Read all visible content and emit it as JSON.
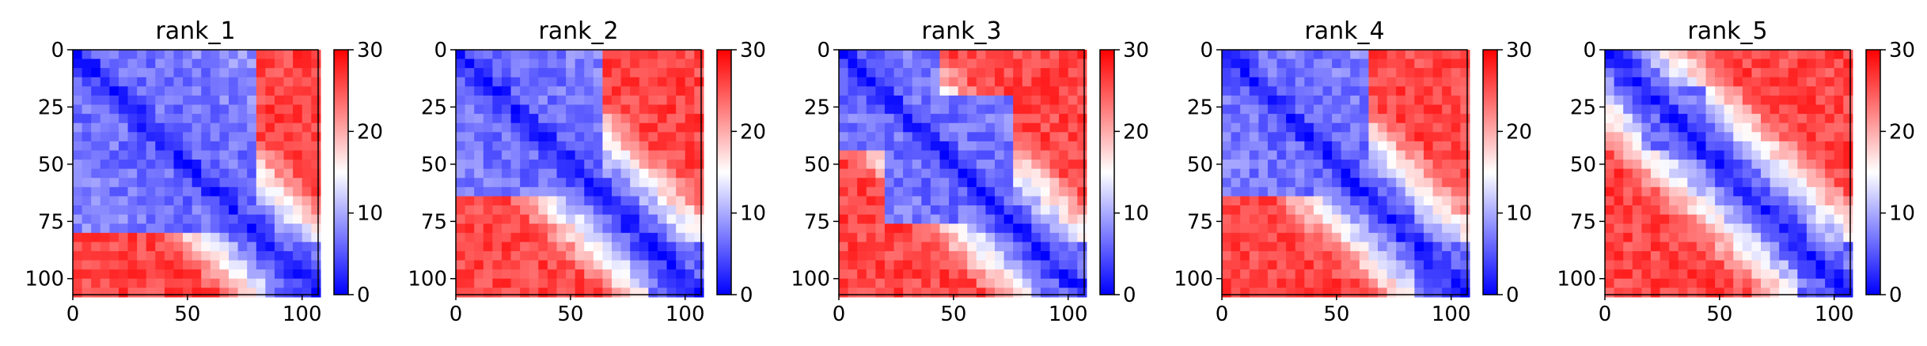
{
  "figure": {
    "colormap": {
      "name": "bwr",
      "low": "#0000ff",
      "mid": "#ffffff",
      "high": "#ff0000"
    }
  },
  "chart_data": [
    {
      "type": "heatmap",
      "title": "rank_1",
      "xlabel": "",
      "ylabel": "",
      "xlim": [
        0,
        107
      ],
      "ylim": [
        107,
        0
      ],
      "xticks": [
        "0",
        "50",
        "100"
      ],
      "yticks": [
        "0",
        "25",
        "50",
        "75",
        "100"
      ],
      "colorbar": {
        "range": [
          0,
          30
        ],
        "ticks": [
          "0",
          "10",
          "20",
          "30"
        ]
      },
      "low_blocks": [
        [
          1,
          62
        ],
        [
          1,
          78
        ],
        [
          83,
          107
        ]
      ]
    },
    {
      "type": "heatmap",
      "title": "rank_2",
      "xlabel": "",
      "ylabel": "",
      "xlim": [
        0,
        107
      ],
      "ylim": [
        107,
        0
      ],
      "xticks": [
        "0",
        "50",
        "100"
      ],
      "yticks": [
        "0",
        "25",
        "50",
        "75",
        "100"
      ],
      "colorbar": {
        "range": [
          0,
          30
        ],
        "ticks": [
          "0",
          "10",
          "20",
          "30"
        ]
      },
      "low_blocks": [
        [
          1,
          62
        ],
        [
          83,
          107
        ]
      ]
    },
    {
      "type": "heatmap",
      "title": "rank_3",
      "xlabel": "",
      "ylabel": "",
      "xlim": [
        0,
        107
      ],
      "ylim": [
        107,
        0
      ],
      "xticks": [
        "0",
        "50",
        "100"
      ],
      "yticks": [
        "0",
        "25",
        "50",
        "75",
        "100"
      ],
      "colorbar": {
        "range": [
          0,
          30
        ],
        "ticks": [
          "0",
          "10",
          "20",
          "30"
        ]
      },
      "low_blocks": [
        [
          1,
          45
        ],
        [
          20,
          75
        ],
        [
          83,
          107
        ]
      ]
    },
    {
      "type": "heatmap",
      "title": "rank_4",
      "xlabel": "",
      "ylabel": "",
      "xlim": [
        0,
        107
      ],
      "ylim": [
        107,
        0
      ],
      "xticks": [
        "0",
        "50",
        "100"
      ],
      "yticks": [
        "0",
        "25",
        "50",
        "75",
        "100"
      ],
      "colorbar": {
        "range": [
          0,
          30
        ],
        "ticks": [
          "0",
          "10",
          "20",
          "30"
        ]
      },
      "low_blocks": [
        [
          1,
          62
        ],
        [
          83,
          107
        ]
      ]
    },
    {
      "type": "heatmap",
      "title": "rank_5",
      "xlabel": "",
      "ylabel": "",
      "xlim": [
        0,
        107
      ],
      "ylim": [
        107,
        0
      ],
      "xticks": [
        "0",
        "50",
        "100"
      ],
      "yticks": [
        "0",
        "25",
        "50",
        "75",
        "100"
      ],
      "colorbar": {
        "range": [
          0,
          30
        ],
        "ticks": [
          "0",
          "10",
          "20",
          "30"
        ]
      },
      "low_blocks": [
        [
          15,
          45
        ],
        [
          83,
          107
        ]
      ]
    }
  ]
}
